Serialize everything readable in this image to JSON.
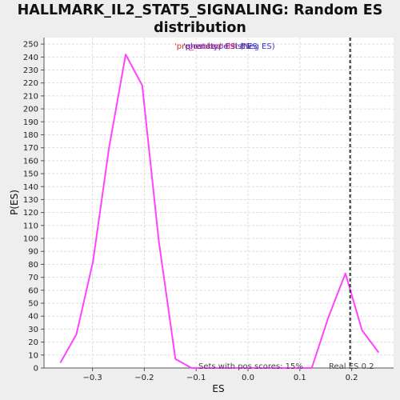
{
  "chart_data": {
    "type": "line",
    "title_lines": [
      "HALLMARK_IL2_STAT5_SIGNALING: Random ES",
      "distribution"
    ],
    "xlabel": "ES",
    "ylabel": "P(ES)",
    "xlim": [
      -0.385,
      0.28
    ],
    "ylim": [
      0,
      255
    ],
    "x_ticks": [
      -0.3,
      -0.2,
      -0.1,
      0.0,
      0.1,
      0.2
    ],
    "x_tick_labels": [
      "−0.3",
      "−0.2",
      "−0.1",
      "0.0",
      "0.1",
      "0.2"
    ],
    "y_ticks": [
      0,
      10,
      20,
      30,
      40,
      50,
      60,
      70,
      80,
      90,
      100,
      110,
      120,
      130,
      140,
      150,
      160,
      170,
      180,
      190,
      200,
      210,
      220,
      230,
      240,
      250
    ],
    "y_tick_labels": [
      "0",
      "10",
      "20",
      "30",
      "40",
      "50",
      "60",
      "70",
      "80",
      "90",
      "100",
      "110",
      "120",
      "130",
      "140",
      "150",
      "160",
      "170",
      "180",
      "190",
      "200",
      "210",
      "220",
      "230",
      "240",
      "250"
    ],
    "grid": true,
    "series": [
      {
        "color": "#ff44ff",
        "points": [
          [
            -0.362,
            4
          ],
          [
            -0.331,
            26
          ],
          [
            -0.299,
            82
          ],
          [
            -0.268,
            170
          ],
          [
            -0.236,
            242
          ],
          [
            -0.204,
            218
          ],
          [
            -0.172,
            98
          ],
          [
            -0.14,
            7
          ],
          [
            -0.109,
            0
          ],
          [
            -0.077,
            0
          ],
          [
            -0.045,
            0
          ],
          [
            -0.013,
            0
          ],
          [
            0.018,
            0
          ],
          [
            0.05,
            0
          ],
          [
            0.082,
            0
          ],
          [
            0.123,
            0
          ],
          [
            0.155,
            39
          ],
          [
            0.188,
            73
          ],
          [
            0.22,
            29
          ],
          [
            0.252,
            12
          ]
        ]
      }
    ],
    "real_es": 0.197,
    "real_es_color": "#333333",
    "legend_entries": [
      {
        "text": "'pre_ranked' list ES",
        "color": "#cc3333"
      },
      {
        "text": "'phenotype' list ES",
        "color": "#3333cc"
      },
      {
        "text": "post-hoc ES",
        "color": "#aa22aa"
      },
      {
        "text": "(Neg ES)",
        "color": "#3333cc"
      }
    ],
    "annotations": {
      "pos_scores": "Sets with pos scores: 15%",
      "real_es": "Real ES 0.2"
    }
  }
}
